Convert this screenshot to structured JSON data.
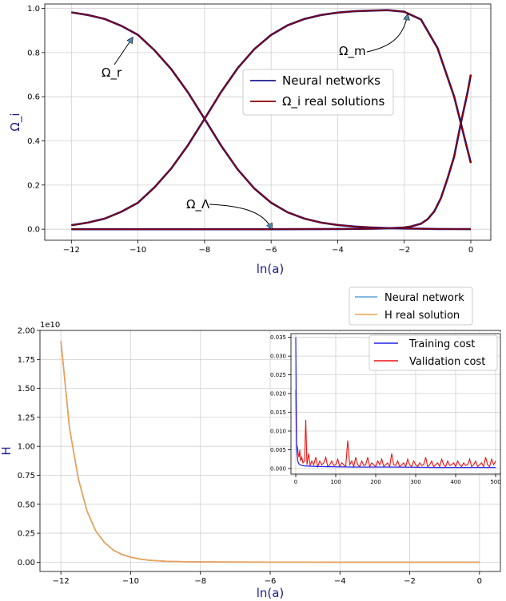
{
  "colors": {
    "neural": "#1a1a8c",
    "real": "#8b0000",
    "nn2": "#5fa2d6",
    "real2": "#f0a050",
    "train": "#2222ee",
    "valid": "#ee1111",
    "grid": "#d0d0d0",
    "axis_label": "#1a1a8c"
  },
  "chart_data": [
    {
      "type": "line",
      "xlabel": "ln(a)",
      "ylabel": "Ω_i",
      "xlim": [
        -12.8,
        0.6
      ],
      "ylim": [
        -0.05,
        1.02
      ],
      "xticks": [
        -12,
        -10,
        -8,
        -6,
        -4,
        -2,
        0
      ],
      "xtick_labels": [
        "−12",
        "−10",
        "−8",
        "−6",
        "−4",
        "−2",
        "0"
      ],
      "yticks": [
        0.0,
        0.2,
        0.4,
        0.6,
        0.8,
        1.0
      ],
      "ytick_labels": [
        "0.0",
        "0.2",
        "0.4",
        "0.6",
        "0.8",
        "1.0"
      ],
      "grid": true,
      "legend": {
        "position": "center-right",
        "entries": [
          "Neural networks",
          "Ω_i real solutions"
        ]
      },
      "annotations": [
        {
          "label": "Ω_r",
          "x": -10.0,
          "y": 0.88
        },
        {
          "label": "Ω_m",
          "x": -2.0,
          "y": 0.99
        },
        {
          "label": "Ω_Λ",
          "x": -6.0,
          "y": 0.01
        }
      ],
      "series": [
        {
          "component": "radiation",
          "x": [
            -12,
            -11.5,
            -11,
            -10.5,
            -10,
            -9.5,
            -9,
            -8.5,
            -8,
            -7.5,
            -7,
            -6.5,
            -6,
            -5.5,
            -5,
            -4.5,
            -4,
            -3.5,
            -3,
            -2.5,
            -2,
            -1.5,
            -1,
            -0.5,
            0
          ],
          "y": [
            0.982,
            0.97,
            0.952,
            0.921,
            0.88,
            0.81,
            0.725,
            0.62,
            0.5,
            0.378,
            0.27,
            0.184,
            0.12,
            0.076,
            0.048,
            0.03,
            0.019,
            0.012,
            0.008,
            0.005,
            0.003,
            0.002,
            0.001,
            0.0005,
            0.0002
          ]
        },
        {
          "component": "matter",
          "x": [
            -12,
            -11.5,
            -11,
            -10.5,
            -10,
            -9.5,
            -9,
            -8.5,
            -8,
            -7.5,
            -7,
            -6.5,
            -6,
            -5.5,
            -5,
            -4.5,
            -4,
            -3.5,
            -3,
            -2.5,
            -2,
            -1.5,
            -1,
            -0.5,
            0
          ],
          "y": [
            0.018,
            0.03,
            0.048,
            0.079,
            0.12,
            0.19,
            0.275,
            0.38,
            0.5,
            0.622,
            0.73,
            0.816,
            0.88,
            0.924,
            0.952,
            0.97,
            0.981,
            0.987,
            0.99,
            0.992,
            0.985,
            0.95,
            0.82,
            0.6,
            0.3
          ]
        },
        {
          "component": "dark energy",
          "x": [
            -12,
            -10,
            -8,
            -6,
            -4,
            -3,
            -2.5,
            -2,
            -1.8,
            -1.5,
            -1.3,
            -1.1,
            -0.9,
            -0.7,
            -0.5,
            -0.3,
            -0.1,
            0
          ],
          "y": [
            0.0,
            0.0,
            0.0,
            0.0,
            0.001,
            0.002,
            0.004,
            0.008,
            0.012,
            0.025,
            0.045,
            0.08,
            0.14,
            0.23,
            0.33,
            0.48,
            0.62,
            0.7
          ]
        }
      ]
    },
    {
      "type": "line",
      "xlabel": "ln(a)",
      "ylabel": "H",
      "offset_text": "1e10",
      "xlim": [
        -12.6,
        0.6
      ],
      "ylim": [
        -0.08,
        2.0
      ],
      "xticks": [
        -12,
        -10,
        -8,
        -6,
        -4,
        -2,
        0
      ],
      "xtick_labels": [
        "−12",
        "−10",
        "−8",
        "−6",
        "−4",
        "−2",
        "0"
      ],
      "yticks": [
        0.0,
        0.25,
        0.5,
        0.75,
        1.0,
        1.25,
        1.5,
        1.75,
        2.0
      ],
      "ytick_labels": [
        "0.00",
        "0.25",
        "0.50",
        "0.75",
        "1.00",
        "1.25",
        "1.50",
        "1.75",
        "2.00"
      ],
      "grid": true,
      "legend": {
        "position": "above-top-right",
        "entries": [
          "Neural network",
          "H real solution"
        ]
      },
      "series": [
        {
          "name": "Neural network",
          "x": [
            -12,
            -11.75,
            -11.5,
            -11.25,
            -11,
            -10.75,
            -10.5,
            -10.25,
            -10,
            -9.75,
            -9.5,
            -9.25,
            -9,
            -8.5,
            -8,
            -6,
            -4,
            -2,
            0
          ],
          "y": [
            1.91,
            1.15,
            0.72,
            0.44,
            0.27,
            0.17,
            0.105,
            0.067,
            0.043,
            0.028,
            0.018,
            0.012,
            0.008,
            0.004,
            0.002,
            0.0005,
            0.0002,
            0.0001,
            0.0
          ]
        },
        {
          "name": "H real solution",
          "x": [
            -12,
            -11.75,
            -11.5,
            -11.25,
            -11,
            -10.75,
            -10.5,
            -10.25,
            -10,
            -9.75,
            -9.5,
            -9.25,
            -9,
            -8.5,
            -8,
            -6,
            -4,
            -2,
            0
          ],
          "y": [
            1.91,
            1.15,
            0.72,
            0.44,
            0.27,
            0.17,
            0.105,
            0.067,
            0.043,
            0.028,
            0.018,
            0.012,
            0.008,
            0.004,
            0.002,
            0.0005,
            0.0002,
            0.0001,
            0.0
          ]
        }
      ]
    },
    {
      "type": "line",
      "inset": true,
      "xlim": [
        -12,
        512
      ],
      "ylim": [
        -0.0015,
        0.036
      ],
      "xticks": [
        0,
        100,
        200,
        300,
        400,
        500
      ],
      "xtick_labels": [
        "0",
        "100",
        "200",
        "300",
        "400",
        "500"
      ],
      "yticks": [
        0.0,
        0.005,
        0.01,
        0.015,
        0.02,
        0.025,
        0.03,
        0.035
      ],
      "ytick_labels": [
        "0.000",
        "0.005",
        "0.010",
        "0.015",
        "0.020",
        "0.025",
        "0.030",
        "0.035"
      ],
      "grid": true,
      "legend": {
        "position": "top-right",
        "entries": [
          "Training cost",
          "Validation cost"
        ]
      },
      "series": [
        {
          "name": "Training cost",
          "x": [
            0,
            1,
            2,
            3,
            5,
            8,
            12,
            20,
            40,
            80,
            150,
            250,
            350,
            450,
            500
          ],
          "y": [
            0.035,
            0.02,
            0.008,
            0.004,
            0.002,
            0.0012,
            0.0009,
            0.0007,
            0.0006,
            0.0005,
            0.0004,
            0.0004,
            0.0003,
            0.0003,
            0.0003
          ]
        },
        {
          "name": "Validation cost",
          "x": [
            0,
            1,
            2,
            3,
            4,
            6,
            8,
            10,
            12,
            15,
            18,
            22,
            25,
            28,
            32,
            36,
            40,
            45,
            50,
            55,
            60,
            65,
            70,
            75,
            80,
            85,
            90,
            95,
            100,
            105,
            110,
            115,
            120,
            125,
            130,
            135,
            140,
            145,
            150,
            155,
            160,
            165,
            170,
            175,
            180,
            185,
            190,
            195,
            200,
            205,
            210,
            215,
            220,
            225,
            230,
            235,
            240,
            245,
            250,
            255,
            260,
            265,
            270,
            275,
            280,
            285,
            290,
            295,
            300,
            305,
            310,
            315,
            320,
            325,
            330,
            335,
            340,
            345,
            350,
            355,
            360,
            365,
            370,
            375,
            380,
            385,
            390,
            395,
            400,
            405,
            410,
            415,
            420,
            425,
            430,
            435,
            440,
            445,
            450,
            455,
            460,
            465,
            470,
            475,
            480,
            485,
            490,
            495,
            500
          ],
          "y": [
            0.021,
            0.012,
            0.007,
            0.005,
            0.006,
            0.004,
            0.003,
            0.005,
            0.002,
            0.003,
            0.0015,
            0.002,
            0.013,
            0.001,
            0.004,
            0.0008,
            0.002,
            0.001,
            0.003,
            0.0005,
            0.002,
            0.001,
            0.0015,
            0.003,
            0.0005,
            0.001,
            0.002,
            0.0008,
            0.001,
            0.0025,
            0.0005,
            0.0015,
            0.001,
            0.0005,
            0.0075,
            0.001,
            0.002,
            0.0005,
            0.003,
            0.001,
            0.0005,
            0.002,
            0.0008,
            0.001,
            0.003,
            0.0005,
            0.0015,
            0.001,
            0.0005,
            0.002,
            0.001,
            0.0025,
            0.0005,
            0.001,
            0.0015,
            0.0005,
            0.004,
            0.001,
            0.0008,
            0.002,
            0.0005,
            0.001,
            0.0015,
            0.0005,
            0.0025,
            0.001,
            0.0005,
            0.002,
            0.001,
            0.0005,
            0.0015,
            0.0008,
            0.001,
            0.003,
            0.0005,
            0.001,
            0.002,
            0.0005,
            0.001,
            0.0015,
            0.0005,
            0.0025,
            0.001,
            0.0005,
            0.002,
            0.0008,
            0.001,
            0.0015,
            0.0005,
            0.002,
            0.001,
            0.0005,
            0.0015,
            0.0008,
            0.001,
            0.0025,
            0.0005,
            0.001,
            0.002,
            0.0005,
            0.001,
            0.0015,
            0.0005,
            0.003,
            0.001,
            0.0005,
            0.0025,
            0.001,
            0.002
          ]
        }
      ]
    }
  ]
}
